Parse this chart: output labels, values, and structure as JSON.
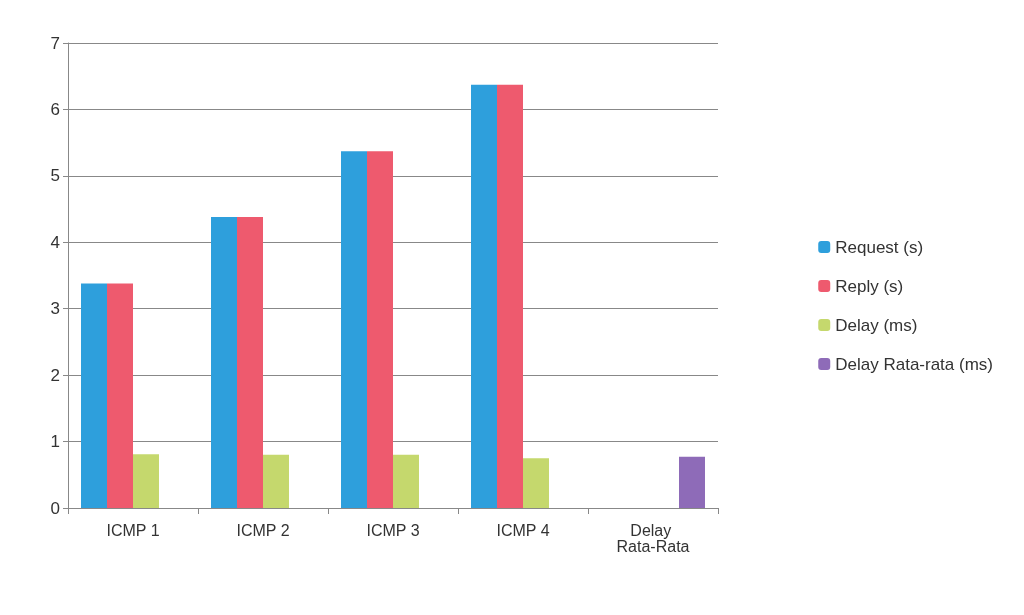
{
  "chart_data": {
    "type": "bar",
    "categories": [
      "ICMP 1",
      "ICMP 2",
      "ICMP 3",
      "ICMP 4",
      "Delay Rata-Rata"
    ],
    "series": [
      {
        "name": "Request (s)",
        "color": "#2e9fdc",
        "values": [
          3.38,
          4.38,
          5.37,
          6.37,
          null
        ]
      },
      {
        "name": "Reply (s)",
        "color": "#ee5a6e",
        "values": [
          3.38,
          4.38,
          5.37,
          6.37,
          null
        ]
      },
      {
        "name": "Delay (ms)",
        "color": "#c5d86d",
        "values": [
          0.81,
          0.8,
          0.8,
          0.75,
          null
        ]
      },
      {
        "name": "Delay Rata-rata (ms)",
        "color": "#8e6bb8",
        "values": [
          null,
          null,
          null,
          null,
          0.77
        ]
      }
    ],
    "ylim": [
      0,
      7
    ],
    "yticks": [
      0,
      1,
      2,
      3,
      4,
      5,
      6,
      7
    ],
    "grid": "y",
    "legend": "right"
  }
}
